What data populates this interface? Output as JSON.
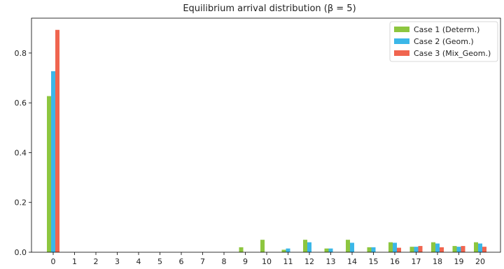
{
  "chart_data": {
    "type": "bar",
    "title": "Equilibrium arrival distribution (β = 5)",
    "xlabel": "",
    "ylabel": "",
    "categories": [
      "0",
      "1",
      "2",
      "3",
      "4",
      "5",
      "6",
      "7",
      "8",
      "9",
      "10",
      "11",
      "12",
      "13",
      "14",
      "15",
      "16",
      "17",
      "18",
      "19",
      "20"
    ],
    "ylim": [
      0,
      0.94
    ],
    "yticks": [
      "0.0",
      "0.2",
      "0.4",
      "0.6",
      "0.8"
    ],
    "legend_position": "top-right",
    "grid": false,
    "series": [
      {
        "name": "Case 1 (Determ.)",
        "color": "#8dc63f",
        "values": [
          0.627,
          0,
          0,
          0,
          0,
          0,
          0,
          0,
          0,
          0.02,
          0.05,
          0.01,
          0.05,
          0.015,
          0.05,
          0.02,
          0.04,
          0.022,
          0.04,
          0.025,
          0.04
        ]
      },
      {
        "name": "Case 2 (Geom.)",
        "color": "#3bb7e8",
        "values": [
          0.727,
          0,
          0,
          0,
          0,
          0,
          0,
          0,
          0,
          0,
          0,
          0.015,
          0.04,
          0.015,
          0.038,
          0.02,
          0.038,
          0.022,
          0.035,
          0.022,
          0.035
        ]
      },
      {
        "name": "Case 3 (Mix_Geom.)",
        "color": "#f0654f",
        "values": [
          0.893,
          0,
          0,
          0,
          0,
          0,
          0,
          0,
          0,
          0,
          0,
          0,
          0,
          0,
          0,
          0,
          0.018,
          0.025,
          0.02,
          0.025,
          0.022
        ]
      }
    ]
  }
}
